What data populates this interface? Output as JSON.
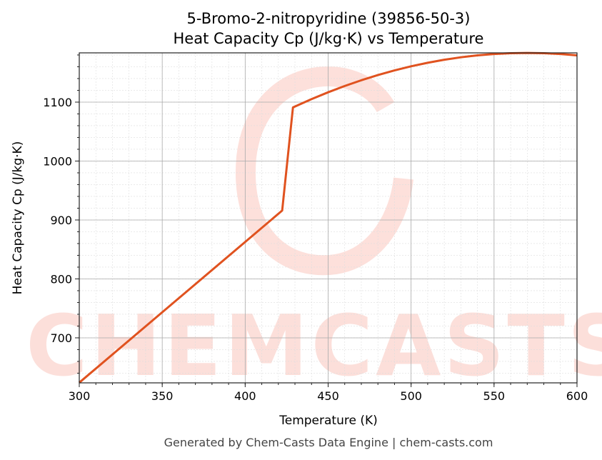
{
  "chart_data": {
    "type": "line",
    "title": "5-Bromo-2-nitropyridine (39856-50-3)",
    "subtitle": "Heat Capacity Cp (J/kg·K) vs Temperature",
    "xlabel": "Temperature (K)",
    "ylabel": "Heat Capacity Cp (J/kg·K)",
    "xlim": [
      300,
      600
    ],
    "ylim": [
      623.6,
      1183.6
    ],
    "xticks": [
      300,
      350,
      400,
      450,
      500,
      550,
      600
    ],
    "yticks": [
      700,
      800,
      900,
      1000,
      1100
    ],
    "grid": true,
    "color": "#e0521f",
    "series": [
      {
        "x": [
          300,
          422.3,
          428.8,
          440,
          450,
          460,
          470,
          480,
          490,
          500,
          510,
          520,
          530,
          540,
          550,
          560,
          570,
          580,
          590,
          600
        ],
        "y": [
          624,
          916,
          1091,
          1105.1,
          1116.7,
          1127.4,
          1137.1,
          1145.9,
          1153.8,
          1160.8,
          1166.8,
          1171.9,
          1176.1,
          1179.3,
          1181.6,
          1183.0,
          1183.5,
          1183.0,
          1181.6,
          1179.3
        ]
      }
    ]
  },
  "watermark": "CHEMCASTS",
  "footer": "Generated by Chem-Casts Data Engine | chem-casts.com"
}
